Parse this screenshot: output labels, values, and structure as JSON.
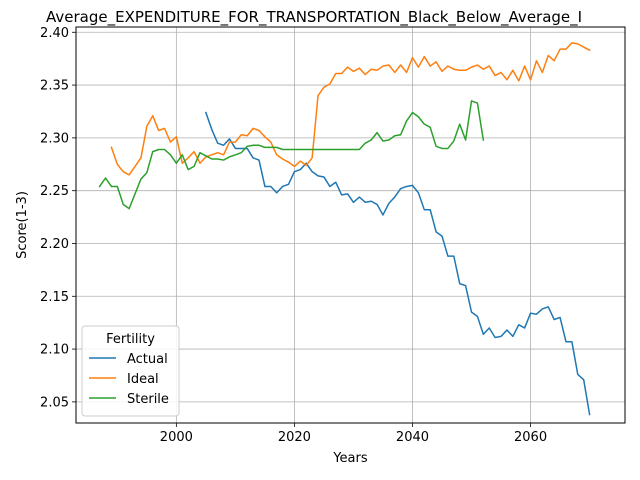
{
  "chart_data": {
    "type": "line",
    "title": "Average_EXPENDITURE_FOR_TRANSPORTATION_Black_Below_Average_I",
    "xlabel": "Years",
    "ylabel": "Score(1-3)",
    "xlim": [
      1983,
      2076
    ],
    "ylim": [
      2.03,
      2.405
    ],
    "xticks": [
      2000,
      2020,
      2040,
      2060
    ],
    "yticks": [
      2.05,
      2.1,
      2.15,
      2.2,
      2.25,
      2.3,
      2.35,
      2.4
    ],
    "grid": true,
    "legend": {
      "title": "Fertility",
      "position": "lower-left",
      "entries": [
        "Actual",
        "Ideal",
        "Sterile"
      ]
    },
    "series": [
      {
        "name": "Actual",
        "color": "#1f77b4",
        "x": [
          2005,
          2006,
          2007,
          2008,
          2009,
          2010,
          2011,
          2012,
          2013,
          2014,
          2015,
          2016,
          2017,
          2018,
          2019,
          2020,
          2021,
          2022,
          2023,
          2024,
          2025,
          2026,
          2027,
          2028,
          2029,
          2030,
          2031,
          2032,
          2033,
          2034,
          2035,
          2036,
          2037,
          2038,
          2039,
          2040,
          2041,
          2042,
          2043,
          2044,
          2045,
          2046,
          2047,
          2048,
          2049,
          2050,
          2051,
          2052,
          2053,
          2054,
          2055,
          2056,
          2057,
          2058,
          2059,
          2060,
          2061,
          2062,
          2063,
          2064,
          2065,
          2066,
          2067,
          2068,
          2069,
          2070
        ],
        "y": [
          2.324,
          2.308,
          2.295,
          2.293,
          2.299,
          2.29,
          2.29,
          2.29,
          2.281,
          2.279,
          2.254,
          2.254,
          2.248,
          2.254,
          2.256,
          2.268,
          2.27,
          2.276,
          2.268,
          2.264,
          2.263,
          2.254,
          2.258,
          2.246,
          2.247,
          2.239,
          2.244,
          2.239,
          2.24,
          2.237,
          2.227,
          2.238,
          2.244,
          2.252,
          2.254,
          2.255,
          2.248,
          2.232,
          2.232,
          2.211,
          2.207,
          2.188,
          2.188,
          2.162,
          2.16,
          2.135,
          2.131,
          2.114,
          2.12,
          2.111,
          2.112,
          2.118,
          2.112,
          2.123,
          2.12,
          2.134,
          2.133,
          2.138,
          2.14,
          2.128,
          2.13,
          2.107,
          2.107,
          2.076,
          2.071,
          2.038
        ]
      },
      {
        "name": "Ideal",
        "color": "#ff7f0e",
        "x": [
          1989,
          1990,
          1991,
          1992,
          1993,
          1994,
          1995,
          1996,
          1997,
          1998,
          1999,
          2000,
          2001,
          2002,
          2003,
          2004,
          2005,
          2006,
          2007,
          2008,
          2009,
          2010,
          2011,
          2012,
          2013,
          2014,
          2015,
          2016,
          2017,
          2018,
          2019,
          2020,
          2021,
          2022,
          2023,
          2024,
          2025,
          2026,
          2027,
          2028,
          2029,
          2030,
          2031,
          2032,
          2033,
          2034,
          2035,
          2036,
          2037,
          2038,
          2039,
          2040,
          2041,
          2042,
          2043,
          2044,
          2045,
          2046,
          2047,
          2048,
          2049,
          2050,
          2051,
          2052,
          2053,
          2054,
          2055,
          2056,
          2057,
          2058,
          2059,
          2060,
          2061,
          2062,
          2063,
          2064,
          2065,
          2066,
          2067,
          2068,
          2069,
          2070
        ],
        "y": [
          2.291,
          2.275,
          2.268,
          2.265,
          2.273,
          2.281,
          2.311,
          2.321,
          2.307,
          2.309,
          2.296,
          2.301,
          2.276,
          2.281,
          2.287,
          2.276,
          2.282,
          2.284,
          2.286,
          2.284,
          2.296,
          2.296,
          2.303,
          2.302,
          2.309,
          2.307,
          2.301,
          2.296,
          2.284,
          2.28,
          2.277,
          2.273,
          2.278,
          2.274,
          2.281,
          2.34,
          2.348,
          2.351,
          2.361,
          2.361,
          2.367,
          2.363,
          2.366,
          2.36,
          2.365,
          2.364,
          2.368,
          2.369,
          2.362,
          2.369,
          2.362,
          2.376,
          2.367,
          2.377,
          2.368,
          2.372,
          2.363,
          2.368,
          2.365,
          2.364,
          2.364,
          2.367,
          2.369,
          2.365,
          2.368,
          2.359,
          2.362,
          2.355,
          2.364,
          2.354,
          2.368,
          2.355,
          2.373,
          2.362,
          2.378,
          2.373,
          2.384,
          2.384,
          2.39,
          2.389,
          2.386,
          2.383
        ]
      },
      {
        "name": "Sterile",
        "color": "#2ca02c",
        "x": [
          1987,
          1988,
          1989,
          1990,
          1991,
          1992,
          1993,
          1994,
          1995,
          1996,
          1997,
          1998,
          1999,
          2000,
          2001,
          2002,
          2003,
          2004,
          2005,
          2006,
          2007,
          2008,
          2009,
          2010,
          2011,
          2012,
          2013,
          2014,
          2015,
          2016,
          2017,
          2018,
          2019,
          2020,
          2021,
          2022,
          2023,
          2024,
          2025,
          2026,
          2027,
          2028,
          2029,
          2030,
          2031,
          2032,
          2033,
          2034,
          2035,
          2036,
          2037,
          2038,
          2039,
          2040,
          2041,
          2042,
          2043,
          2044,
          2045,
          2046,
          2047,
          2048,
          2049,
          2050,
          2051,
          2052
        ],
        "y": [
          2.254,
          2.262,
          2.254,
          2.254,
          2.237,
          2.233,
          2.247,
          2.261,
          2.267,
          2.287,
          2.289,
          2.289,
          2.284,
          2.276,
          2.284,
          2.27,
          2.273,
          2.286,
          2.283,
          2.28,
          2.28,
          2.279,
          2.282,
          2.284,
          2.286,
          2.292,
          2.293,
          2.293,
          2.291,
          2.291,
          2.291,
          2.289,
          2.289,
          2.289,
          2.289,
          2.289,
          2.289,
          2.289,
          2.289,
          2.289,
          2.289,
          2.289,
          2.289,
          2.289,
          2.289,
          2.295,
          2.298,
          2.305,
          2.297,
          2.298,
          2.302,
          2.303,
          2.316,
          2.324,
          2.32,
          2.313,
          2.31,
          2.292,
          2.29,
          2.29,
          2.297,
          2.313,
          2.298,
          2.335,
          2.333,
          2.298
        ]
      }
    ]
  }
}
